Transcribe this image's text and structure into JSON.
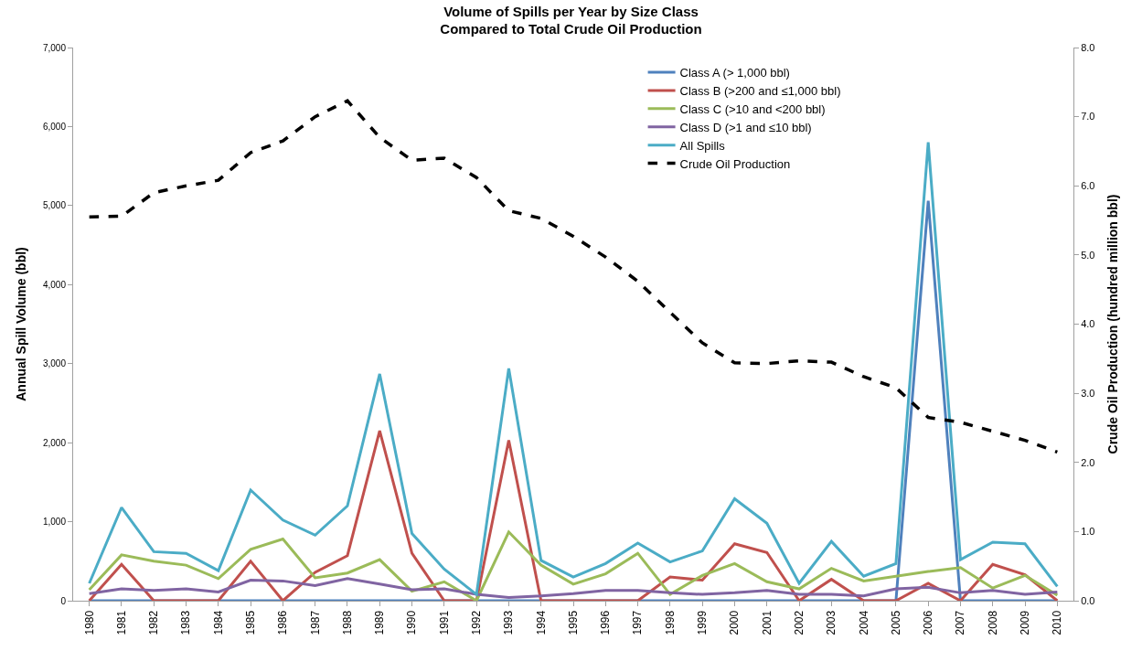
{
  "chart_data": {
    "type": "line",
    "title": "Volume of Spills per Year by Size Class\nCompared to Total Crude Oil Production",
    "ylabel": "Annual Spill Volume (bbl)",
    "y2label": "Crude Oil Production (hundred million bbl)",
    "categories": [
      "1980",
      "1981",
      "1982",
      "1983",
      "1984",
      "1985",
      "1986",
      "1987",
      "1988",
      "1989",
      "1990",
      "1991",
      "1992",
      "1993",
      "1994",
      "1995",
      "1996",
      "1997",
      "1998",
      "1999",
      "2000",
      "2001",
      "2002",
      "2003",
      "2004",
      "2005",
      "2006",
      "2007",
      "2008",
      "2009",
      "2010"
    ],
    "series": [
      {
        "name": "Class A (> 1,000 bbl)",
        "color": "#4f81bd",
        "values": [
          0,
          0,
          0,
          0,
          0,
          0,
          0,
          0,
          0,
          0,
          0,
          0,
          0,
          0,
          0,
          0,
          0,
          0,
          0,
          0,
          0,
          0,
          0,
          0,
          0,
          0,
          5060,
          0,
          0,
          0,
          0
        ]
      },
      {
        "name": "Class B (>200 and ≤1,000 bbl)",
        "color": "#c0504d",
        "values": [
          0,
          460,
          0,
          0,
          0,
          500,
          0,
          360,
          570,
          2150,
          600,
          0,
          0,
          2030,
          0,
          0,
          0,
          0,
          300,
          260,
          720,
          610,
          0,
          270,
          0,
          0,
          220,
          0,
          460,
          330,
          0
        ]
      },
      {
        "name": "Class C (>10 and <200 bbl)",
        "color": "#9bbb59",
        "values": [
          140,
          580,
          500,
          450,
          280,
          650,
          780,
          290,
          350,
          520,
          120,
          240,
          0,
          870,
          450,
          210,
          340,
          600,
          80,
          320,
          470,
          240,
          150,
          410,
          250,
          310,
          370,
          420,
          160,
          320,
          70
        ]
      },
      {
        "name": "Class D (>1 and ≤10 bbl)",
        "color": "#8064a2",
        "values": [
          90,
          150,
          130,
          150,
          110,
          260,
          250,
          190,
          280,
          210,
          140,
          150,
          80,
          40,
          60,
          90,
          130,
          130,
          100,
          80,
          100,
          130,
          80,
          80,
          60,
          150,
          170,
          100,
          130,
          80,
          110
        ]
      },
      {
        "name": "All Spills",
        "color": "#4bacc6",
        "values": [
          220,
          1180,
          620,
          600,
          380,
          1400,
          1020,
          830,
          1200,
          2870,
          850,
          400,
          80,
          2940,
          510,
          300,
          470,
          730,
          490,
          630,
          1290,
          980,
          220,
          750,
          310,
          470,
          5800,
          520,
          740,
          720,
          180
        ]
      },
      {
        "name": "Crude Oil Production",
        "color": "#000000",
        "axis": "y2",
        "line_style": "dashed",
        "values": [
          5.55,
          5.56,
          5.9,
          6.0,
          6.08,
          6.48,
          6.65,
          7.0,
          7.23,
          6.7,
          6.37,
          6.4,
          6.12,
          5.64,
          5.53,
          5.27,
          4.97,
          4.62,
          4.17,
          3.73,
          3.44,
          3.43,
          3.47,
          3.45,
          3.24,
          3.08,
          2.65,
          2.58,
          2.45,
          2.32,
          2.15
        ]
      }
    ],
    "ylim": [
      0,
      7000
    ],
    "yticks": [
      {
        "value": 0,
        "label": "0"
      },
      {
        "value": 1000,
        "label": "1,000"
      },
      {
        "value": 2000,
        "label": "2,000"
      },
      {
        "value": 3000,
        "label": "3,000"
      },
      {
        "value": 4000,
        "label": "4,000"
      },
      {
        "value": 5000,
        "label": "5,000"
      },
      {
        "value": 6000,
        "label": "6,000"
      },
      {
        "value": 7000,
        "label": "7,000"
      }
    ],
    "y2lim": [
      0,
      8
    ],
    "y2ticks": [
      {
        "value": 0,
        "label": "0.0"
      },
      {
        "value": 1,
        "label": "1.0"
      },
      {
        "value": 2,
        "label": "2.0"
      },
      {
        "value": 3,
        "label": "3.0"
      },
      {
        "value": 4,
        "label": "4.0"
      },
      {
        "value": 5,
        "label": "5.0"
      },
      {
        "value": 6,
        "label": "6.0"
      },
      {
        "value": 7,
        "label": "7.0"
      },
      {
        "value": 8,
        "label": "8.0"
      }
    ],
    "grid": false,
    "legend": "top right",
    "marker": "none",
    "line_style": "solid"
  }
}
